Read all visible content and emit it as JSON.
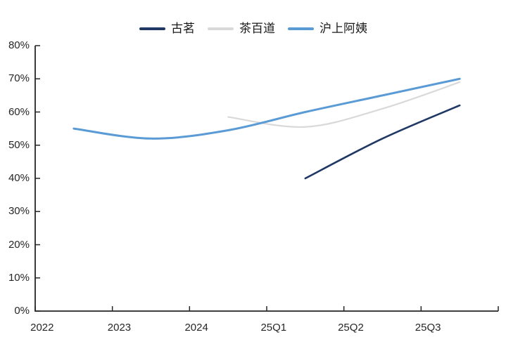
{
  "page": {
    "background": "#ffffff"
  },
  "chart_data": {
    "type": "line",
    "title": "",
    "xlabel": "",
    "ylabel": "",
    "categories": [
      "2022",
      "2023",
      "2024",
      "25Q1",
      "25Q2",
      "25Q3"
    ],
    "y_tick_labels": [
      "80%",
      "70%",
      "60%",
      "50%",
      "40%",
      "30%",
      "20%",
      "10%",
      "0%"
    ],
    "ylim": [
      0,
      80
    ],
    "y_step": 10,
    "grid": false,
    "smooth": true,
    "legend_position": "top-center",
    "axis_color": "#262626",
    "label_color": "#262626",
    "series": [
      {
        "name": "古茗",
        "color": "#1F3864",
        "width": 2.6,
        "values": [
          null,
          null,
          null,
          40,
          52,
          62
        ]
      },
      {
        "name": "茶百道",
        "color": "#D9D9D9",
        "width": 2.2,
        "values": [
          null,
          null,
          58.5,
          55.5,
          61,
          69
        ]
      },
      {
        "name": "沪上阿姨",
        "color": "#5B9BD5",
        "width": 3,
        "values": [
          55,
          52,
          54.5,
          60,
          65,
          70
        ]
      }
    ]
  }
}
